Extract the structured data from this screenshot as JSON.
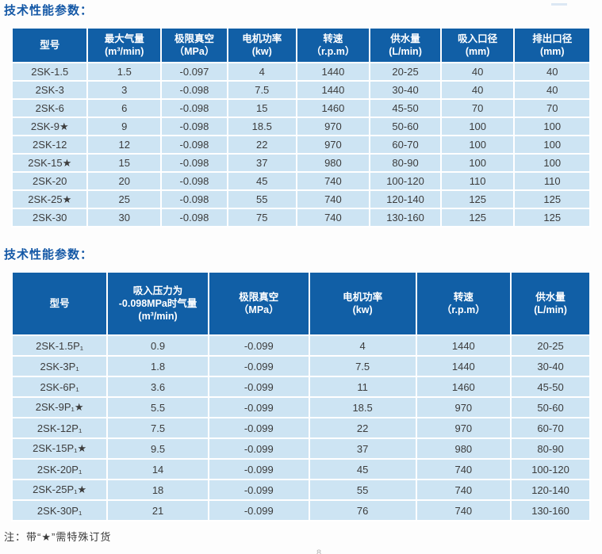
{
  "page": {
    "note": "注：带“★”需特殊订货",
    "page_number": "8"
  },
  "colors": {
    "header_bg": "#115fa6",
    "row_bg": "#cde4f3",
    "title": "#1458a6",
    "header_text": "#ffffff",
    "body_text": "#3c3c3c"
  },
  "tables": [
    {
      "title": "技术性能参数：",
      "headers": [
        [
          "型号"
        ],
        [
          "最大气量",
          "(m³/min)"
        ],
        [
          "极限真空",
          "（MPa）"
        ],
        [
          "电机功率",
          "(kw)"
        ],
        [
          "转速",
          "（r.p.m）"
        ],
        [
          "供水量",
          "(L/min)"
        ],
        [
          "吸入口径",
          "(mm)"
        ],
        [
          "排出口径",
          "(mm)"
        ]
      ],
      "rows": [
        [
          "2SK-1.5",
          "1.5",
          "-0.097",
          "4",
          "1440",
          "20-25",
          "40",
          "40"
        ],
        [
          "2SK-3",
          "3",
          "-0.098",
          "7.5",
          "1440",
          "30-40",
          "40",
          "40"
        ],
        [
          "2SK-6",
          "6",
          "-0.098",
          "15",
          "1460",
          "45-50",
          "70",
          "70"
        ],
        [
          "2SK-9★",
          "9",
          "-0.098",
          "18.5",
          "970",
          "50-60",
          "100",
          "100"
        ],
        [
          "2SK-12",
          "12",
          "-0.098",
          "22",
          "970",
          "60-70",
          "100",
          "100"
        ],
        [
          "2SK-15★",
          "15",
          "-0.098",
          "37",
          "980",
          "80-90",
          "100",
          "100"
        ],
        [
          "2SK-20",
          "20",
          "-0.098",
          "45",
          "740",
          "100-120",
          "110",
          "110"
        ],
        [
          "2SK-25★",
          "25",
          "-0.098",
          "55",
          "740",
          "120-140",
          "125",
          "125"
        ],
        [
          "2SK-30",
          "30",
          "-0.098",
          "75",
          "740",
          "130-160",
          "125",
          "125"
        ]
      ]
    },
    {
      "title": "技术性能参数：",
      "headers": [
        [
          "型号"
        ],
        [
          "吸入压力为",
          "-0.098MPa时气量",
          "(m³/min)"
        ],
        [
          "极限真空",
          "（MPa）"
        ],
        [
          "电机功率",
          "(kw)"
        ],
        [
          "转速",
          "（r.p.m）"
        ],
        [
          "供水量",
          "(L/min)"
        ]
      ],
      "rows": [
        [
          "2SK-1.5P₁",
          "0.9",
          "-0.099",
          "4",
          "1440",
          "20-25"
        ],
        [
          "2SK-3P₁",
          "1.8",
          "-0.099",
          "7.5",
          "1440",
          "30-40"
        ],
        [
          "2SK-6P₁",
          "3.6",
          "-0.099",
          "11",
          "1460",
          "45-50"
        ],
        [
          "2SK-9P₁★",
          "5.5",
          "-0.099",
          "18.5",
          "970",
          "50-60"
        ],
        [
          "2SK-12P₁",
          "7.5",
          "-0.099",
          "22",
          "970",
          "60-70"
        ],
        [
          "2SK-15P₁★",
          "9.5",
          "-0.099",
          "37",
          "980",
          "80-90"
        ],
        [
          "2SK-20P₁",
          "14",
          "-0.099",
          "45",
          "740",
          "100-120"
        ],
        [
          "2SK-25P₁★",
          "18",
          "-0.099",
          "55",
          "740",
          "120-140"
        ],
        [
          "2SK-30P₁",
          "21",
          "-0.099",
          "76",
          "740",
          "130-160"
        ]
      ]
    }
  ]
}
